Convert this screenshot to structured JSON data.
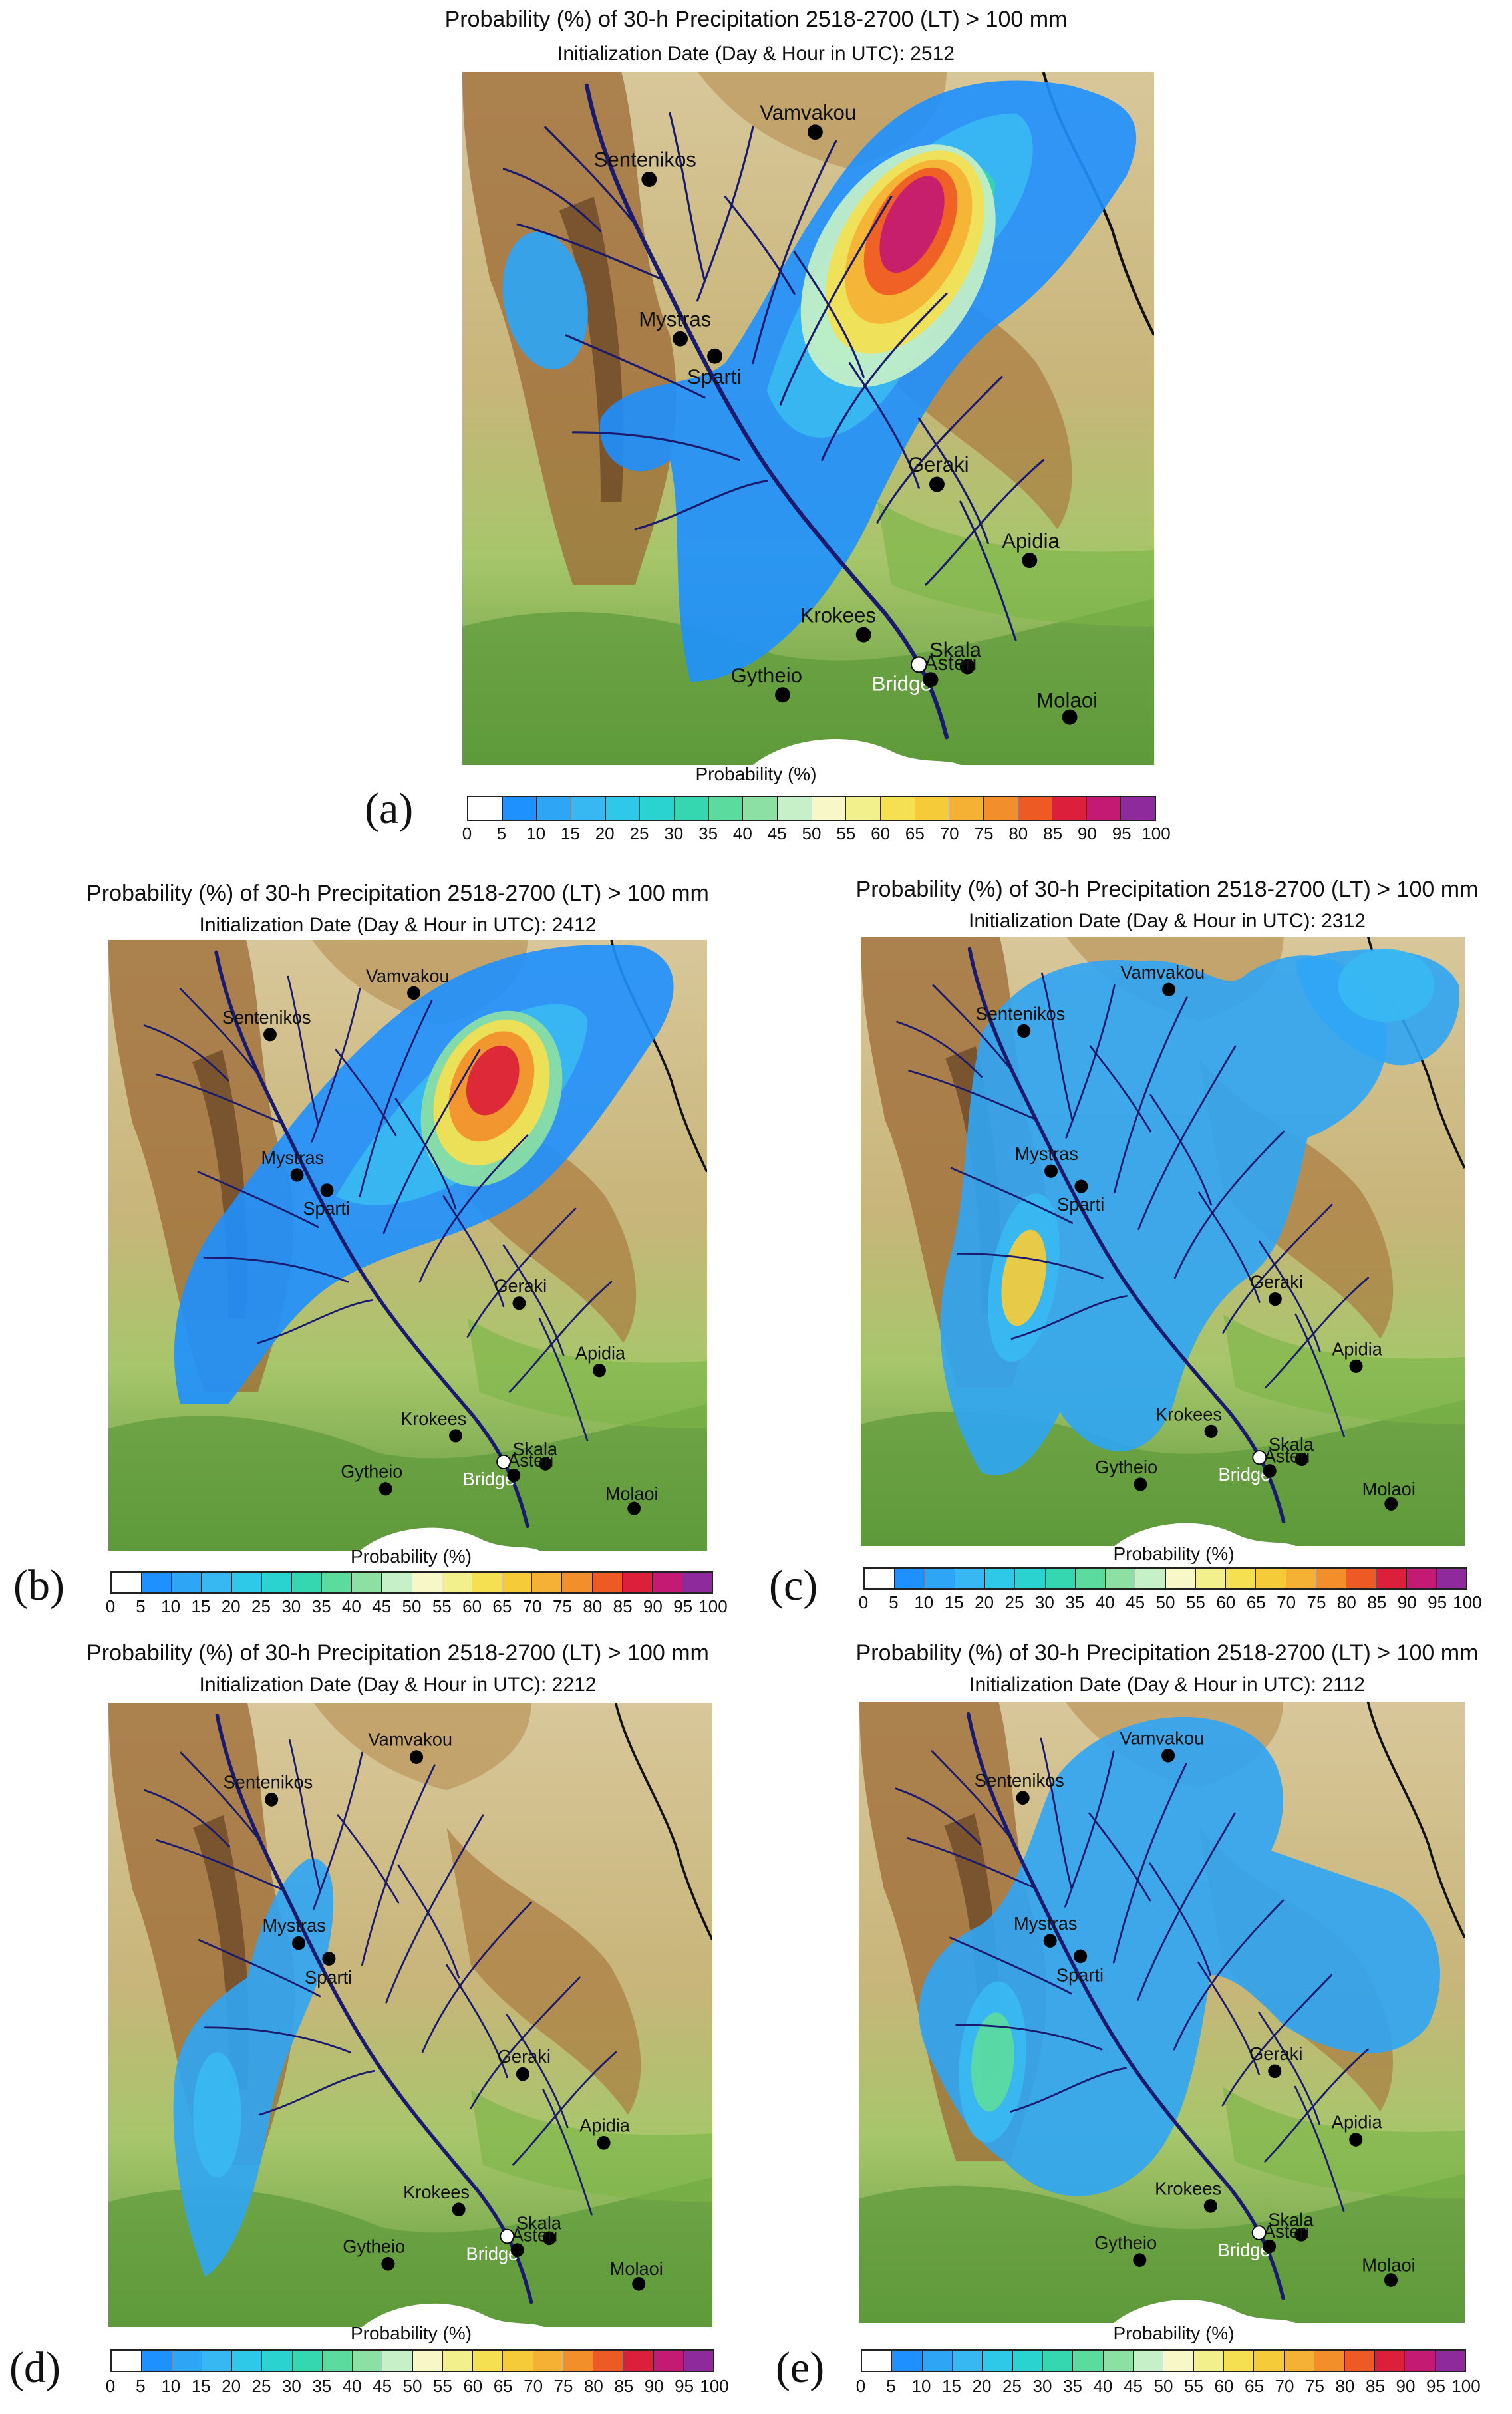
{
  "colorbar": {
    "title": "Probability (%)",
    "ticks": [
      "0",
      "5",
      "10",
      "15",
      "20",
      "25",
      "30",
      "35",
      "40",
      "45",
      "50",
      "55",
      "60",
      "65",
      "70",
      "75",
      "80",
      "85",
      "90",
      "95",
      "100"
    ],
    "colors": [
      "#ffffff",
      "#1e90ff",
      "#2fa5f5",
      "#38b8f2",
      "#2ec9e8",
      "#2ad3cf",
      "#35d7b0",
      "#5bdb9e",
      "#8ce0a3",
      "#c6f0c8",
      "#f7f7c7",
      "#f1f08c",
      "#f4e050",
      "#f5cb3a",
      "#f5b133",
      "#f28f2b",
      "#ee5a24",
      "#dc1f3a",
      "#c41a73",
      "#8e2a9c"
    ]
  },
  "cities": [
    {
      "name": "Vamvakou",
      "white": false
    },
    {
      "name": "Sentenikos",
      "white": false
    },
    {
      "name": "Mystras",
      "white": false
    },
    {
      "name": "Sparti",
      "white": false
    },
    {
      "name": "Geraki",
      "white": false
    },
    {
      "name": "Apidia",
      "white": false
    },
    {
      "name": "Krokees",
      "white": false
    },
    {
      "name": "Skala",
      "white": false
    },
    {
      "name": "Bridge",
      "white": true
    },
    {
      "name": "Asteri",
      "white": false
    },
    {
      "name": "Gytheio",
      "white": false
    },
    {
      "name": "Molaoi",
      "white": false
    }
  ],
  "panels": [
    {
      "id": "a",
      "label": "(a)",
      "title": "Probability (%) of 30-h Precipitation 2518-2700 (LT) > 100 mm",
      "init": "Initialization Date (Day & Hour in UTC): 2512"
    },
    {
      "id": "b",
      "label": "(b)",
      "title": "Probability (%) of 30-h Precipitation 2518-2700 (LT) > 100 mm",
      "init": "Initialization Date (Day & Hour in UTC): 2412"
    },
    {
      "id": "c",
      "label": "(c)",
      "title": "Probability (%) of 30-h Precipitation 2518-2700 (LT) > 100 mm",
      "init": "Initialization Date (Day & Hour in UTC): 2312"
    },
    {
      "id": "d",
      "label": "(d)",
      "title": "Probability (%) of 30-h Precipitation 2518-2700 (LT) > 100 mm",
      "init": "Initialization Date (Day & Hour in UTC): 2212"
    },
    {
      "id": "e",
      "label": "(e)",
      "title": "Probability (%) of 30-h Precipitation 2518-2700 (LT) > 100 mm",
      "init": "Initialization Date (Day & Hour in UTC): 2112"
    }
  ]
}
